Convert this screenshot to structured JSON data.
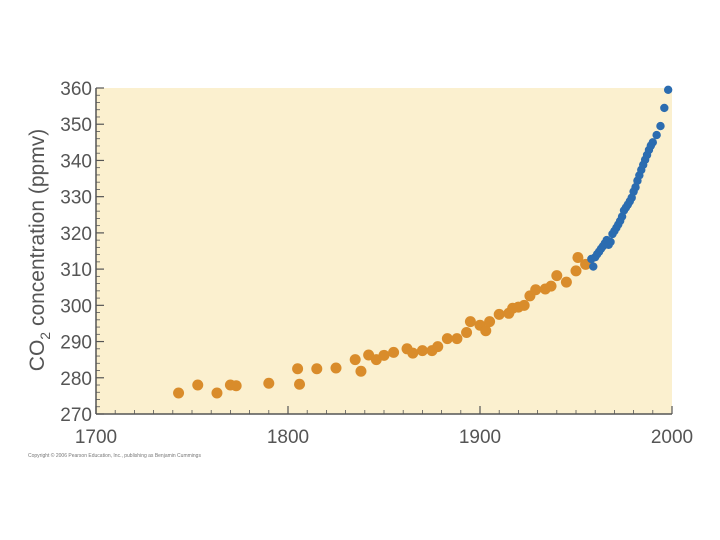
{
  "colors": {
    "background": "#ffffff",
    "plot_area": "#fbf0cf",
    "axis_line": "#555555",
    "ice_core_points": "#d98c2b",
    "direct_measurement_points": "#2b6cb0",
    "text": "#555555"
  },
  "copyright": "Copyright © 2006 Pearson Education, Inc., publishing as Benjamin Cummings",
  "chart_data": {
    "type": "scatter",
    "title": "",
    "xlabel": "",
    "ylabel_main": "CO",
    "ylabel_sub": "2",
    "ylabel_rest": " concentration (ppmv)",
    "xlim": [
      1700,
      2000
    ],
    "ylim": [
      270,
      360
    ],
    "xticks": [
      1700,
      1800,
      1900,
      2000
    ],
    "yticks": [
      270,
      280,
      290,
      300,
      310,
      320,
      330,
      340,
      350,
      360
    ],
    "grid": false,
    "legend": "none",
    "series": [
      {
        "color": "#d98c2b",
        "points": [
          [
            1743,
            275.8
          ],
          [
            1753,
            278
          ],
          [
            1763,
            275.8
          ],
          [
            1770,
            278
          ],
          [
            1773,
            277.8
          ],
          [
            1790,
            278.5
          ],
          [
            1805,
            282.5
          ],
          [
            1806,
            278.2
          ],
          [
            1815,
            282.5
          ],
          [
            1825,
            282.7
          ],
          [
            1835,
            285
          ],
          [
            1838,
            281.8
          ],
          [
            1842,
            286.3
          ],
          [
            1846,
            285
          ],
          [
            1850,
            286.2
          ],
          [
            1855,
            287
          ],
          [
            1862,
            288
          ],
          [
            1865,
            286.8
          ],
          [
            1870,
            287.5
          ],
          [
            1875,
            287.5
          ],
          [
            1878,
            288.6
          ],
          [
            1883,
            290.8
          ],
          [
            1888,
            290.8
          ],
          [
            1893,
            292.5
          ],
          [
            1895,
            295.5
          ],
          [
            1900,
            294.5
          ],
          [
            1903,
            293
          ],
          [
            1905,
            295.5
          ],
          [
            1910,
            297.5
          ],
          [
            1915,
            297.8
          ],
          [
            1917,
            299.2
          ],
          [
            1920,
            299.5
          ],
          [
            1923,
            300
          ],
          [
            1926,
            302.6
          ],
          [
            1929,
            304.3
          ],
          [
            1934,
            304.5
          ],
          [
            1937,
            305.3
          ],
          [
            1940,
            308.2
          ],
          [
            1945,
            306.4
          ],
          [
            1950,
            309.5
          ],
          [
            1951,
            313.2
          ],
          [
            1955,
            311.3
          ]
        ]
      },
      {
        "color": "#2b6cb0",
        "points": [
          [
            1958,
            312.8
          ],
          [
            1959,
            310.7
          ],
          [
            1960,
            313.3
          ],
          [
            1961,
            314.1
          ],
          [
            1962,
            314.8
          ],
          [
            1963,
            315.6
          ],
          [
            1964,
            316.3
          ],
          [
            1965,
            317.1
          ],
          [
            1966,
            318
          ],
          [
            1967,
            316.7
          ],
          [
            1968,
            317.5
          ],
          [
            1969,
            319.7
          ],
          [
            1970,
            320.5
          ],
          [
            1971,
            321.4
          ],
          [
            1972,
            322.3
          ],
          [
            1973,
            323.3
          ],
          [
            1974,
            324.5
          ],
          [
            1975,
            326.2
          ],
          [
            1976,
            327
          ],
          [
            1977,
            327.8
          ],
          [
            1978,
            328.7
          ],
          [
            1979,
            329.7
          ],
          [
            1980,
            331.4
          ],
          [
            1981,
            332.6
          ],
          [
            1982,
            334.4
          ],
          [
            1983,
            335.9
          ],
          [
            1984,
            337.4
          ],
          [
            1985,
            338.8
          ],
          [
            1986,
            340.2
          ],
          [
            1987,
            341.5
          ],
          [
            1988,
            342.9
          ],
          [
            1989,
            344.1
          ],
          [
            1990,
            345
          ],
          [
            1992,
            347
          ],
          [
            1994,
            349.5
          ],
          [
            1996,
            354.5
          ],
          [
            1998,
            359.5
          ]
        ]
      }
    ]
  }
}
